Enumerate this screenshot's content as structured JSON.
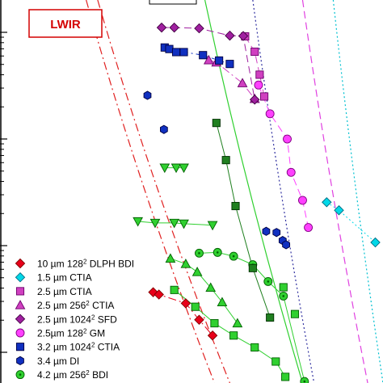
{
  "chart_data": {
    "type": "scatter",
    "title": "",
    "xlabel": "",
    "ylabel": "",
    "band_label": "LWIR",
    "xlim": [
      0,
      1
    ],
    "ylim": [
      0,
      1
    ],
    "log_y": true,
    "grid": false,
    "legend_position": "bottom-left",
    "series": [
      {
        "name": "10 µm 128² DLPH BDI",
        "label_main": "10 µm 128",
        "label_sup": "2",
        "label_tail": " DLPH BDI",
        "color": "#e8001a",
        "edge": "#800000",
        "marker": "diamond",
        "line": "dashdot",
        "x": [
          0.4,
          0.415,
          0.485,
          0.52,
          0.555
        ],
        "y": [
          0.237,
          0.231,
          0.208,
          0.165,
          0.124
        ]
      },
      {
        "name": "1.5 µm CTIA",
        "label_main": "1.5 µm CTIA",
        "label_sup": "",
        "label_tail": "",
        "color": "#00d8e8",
        "edge": "#006a80",
        "marker": "diamond",
        "line": "dotted",
        "x": [
          0.853,
          0.885,
          0.98
        ],
        "y": [
          0.472,
          0.451,
          0.367
        ]
      },
      {
        "name": "2.5 µm CTIA",
        "label_main": "2.5 µm CTIA",
        "label_sup": "",
        "label_tail": "",
        "color": "#d040c0",
        "edge": "#6a006a",
        "marker": "square",
        "line": "dashed",
        "x": [
          0.64,
          0.665,
          0.678,
          0.69
        ],
        "y": [
          0.905,
          0.865,
          0.805,
          0.748
        ]
      },
      {
        "name": "2.5 µm 256² CTIA",
        "label_main": "2.5 µm 256",
        "label_sup": "2",
        "label_tail": " CTIA",
        "color": "#d040c0",
        "edge": "#6a006a",
        "marker": "triangle",
        "line": "dashdot",
        "x": [
          0.545,
          0.565,
          0.633,
          0.665
        ],
        "y": [
          0.843,
          0.837,
          0.783,
          0.742
        ]
      },
      {
        "name": "2.5 µm 1024² SFD",
        "label_main": "2.5 µm 1024",
        "label_sup": "2",
        "label_tail": " SFD",
        "color": "#a020a0",
        "edge": "#400040",
        "marker": "diamond",
        "line": "dashed",
        "x": [
          0.422,
          0.455,
          0.52,
          0.6,
          0.635,
          0.665
        ],
        "y": [
          0.928,
          0.928,
          0.926,
          0.907,
          0.906,
          0.74
        ]
      },
      {
        "name": "2.5µm 128² GM",
        "label_main": "2.5µm 128",
        "label_sup": "2",
        "label_tail": " GM",
        "color": "#ff40ff",
        "edge": "#800080",
        "marker": "circle",
        "line": "dashed",
        "x": [
          0.675,
          0.705,
          0.75,
          0.76,
          0.79,
          0.805
        ],
        "y": [
          0.778,
          0.703,
          0.637,
          0.55,
          0.477,
          0.406
        ]
      },
      {
        "name": "3.2 µm 1024² CTIA",
        "label_main": "3.2 µm 1024",
        "label_sup": "2",
        "label_tail": " CTIA",
        "color": "#1030c0",
        "edge": "#000040",
        "marker": "square",
        "line": "dashdot",
        "x": [
          0.43,
          0.442,
          0.46,
          0.48,
          0.53,
          0.572,
          0.6
        ],
        "y": [
          0.876,
          0.872,
          0.864,
          0.864,
          0.856,
          0.842,
          0.833
        ]
      },
      {
        "name": "3.4 µm DI",
        "label_main": "3.4 µm DI",
        "label_sup": "",
        "label_tail": "",
        "color": "#1030c0",
        "edge": "#000040",
        "marker": "hexagon",
        "line": "none",
        "x": [
          0.385,
          0.428,
          0.695,
          0.722,
          0.738,
          0.747
        ],
        "y": [
          0.751,
          0.662,
          0.396,
          0.393,
          0.372,
          0.361
        ]
      },
      {
        "name": "4.2 µm 256² BDI",
        "label_main": "4.2 µm 256",
        "label_sup": "2",
        "label_tail": " BDI",
        "color": "#30d030",
        "edge": "#006000",
        "marker": "circle-dot",
        "line": "solid",
        "x": [
          0.52,
          0.568,
          0.61,
          0.66,
          0.7,
          0.74,
          0.795
        ],
        "y": [
          0.339,
          0.341,
          0.331,
          0.309,
          0.265,
          0.227,
          0.004
        ]
      }
    ],
    "extra_series": [
      {
        "color": "#30d030",
        "edge": "#006000",
        "marker": "triangle-down",
        "line": "solid",
        "x": [
          0.36,
          0.405,
          0.455,
          0.48,
          0.555
        ],
        "y": [
          0.422,
          0.418,
          0.418,
          0.416,
          0.412
        ]
      },
      {
        "color": "#30d030",
        "edge": "#006000",
        "marker": "triangle-down",
        "line": "solid",
        "x": [
          0.43,
          0.46,
          0.48
        ],
        "y": [
          0.562,
          0.562,
          0.562
        ]
      },
      {
        "color": "#30d030",
        "edge": "#006000",
        "marker": "triangle",
        "line": "solid",
        "x": [
          0.445,
          0.485,
          0.515,
          0.55,
          0.58,
          0.62
        ],
        "y": [
          0.325,
          0.311,
          0.29,
          0.249,
          0.211,
          0.156
        ]
      },
      {
        "color": "#30d030",
        "edge": "#006000",
        "marker": "square",
        "line": "solid",
        "x": [
          0.455,
          0.51,
          0.56,
          0.61,
          0.665,
          0.72,
          0.745
        ],
        "y": [
          0.243,
          0.199,
          0.156,
          0.124,
          0.093,
          0.056,
          0.016
        ]
      },
      {
        "color": "#208020",
        "edge": "#003000",
        "marker": "square",
        "line": "solid",
        "x": [
          0.565,
          0.59,
          0.615,
          0.66,
          0.705
        ],
        "y": [
          0.679,
          0.582,
          0.462,
          0.3,
          0.171
        ]
      },
      {
        "color": "#30d030",
        "edge": "#006000",
        "marker": "square",
        "line": "none",
        "x": [
          0.74,
          0.77
        ],
        "y": [
          0.25,
          0.18
        ]
      }
    ],
    "reference_lines": [
      {
        "color": "#e02020",
        "style": "dashdot",
        "x0": 0.225,
        "x1": 0.56
      },
      {
        "color": "#e02020",
        "style": "dashdot",
        "x0": 0.255,
        "x1": 0.6
      },
      {
        "color": "#30d030",
        "style": "solid",
        "x0": 0.535,
        "x1": 0.79
      },
      {
        "color": "#e040e0",
        "style": "dashed",
        "x0": 0.79,
        "x1": 0.96
      },
      {
        "color": "#3030a0",
        "style": "dotted",
        "x0": 0.66,
        "x1": 0.82
      },
      {
        "color": "#00c0d0",
        "style": "dotted",
        "x0": 0.87,
        "x1": 1.0
      }
    ]
  }
}
